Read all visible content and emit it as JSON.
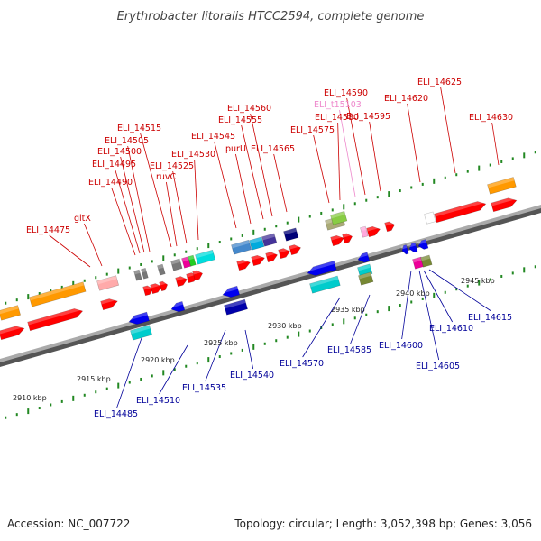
{
  "title": "Erythrobacter litoralis HTCC2594, complete genome",
  "footer": {
    "accession": "Accession: NC_007722",
    "summary": "Topology: circular; Length: 3,052,398 bp; Genes: 3,056"
  },
  "colors": {
    "forward_label": "#cc0000",
    "reverse_label": "#000099",
    "trna_label": "#ee88cc",
    "forward_gene": "#ff0000",
    "reverse_gene": "#0000ee",
    "rna_gene": "#ffaaaa",
    "orange_gene": "#ff9900",
    "cyan_gene": "#00cccc",
    "axis": "#888888",
    "tick": "#228822"
  },
  "scale": {
    "unit": "kbp",
    "ticks": [
      {
        "label": "2910 kbp"
      },
      {
        "label": "2915 kbp"
      },
      {
        "label": "2920 kbp"
      },
      {
        "label": "2925 kbp"
      },
      {
        "label": "2930 kbp"
      },
      {
        "label": "2935 kbp"
      },
      {
        "label": "2940 kbp"
      },
      {
        "label": "2945 kbp"
      }
    ]
  },
  "labels_top": [
    {
      "text": "ELI_14475",
      "type": "forward"
    },
    {
      "text": "gltX",
      "type": "forward"
    },
    {
      "text": "ELI_14490",
      "type": "forward"
    },
    {
      "text": "ELI_14495",
      "type": "forward"
    },
    {
      "text": "ELI_14500",
      "type": "forward"
    },
    {
      "text": "ELI_14505",
      "type": "forward"
    },
    {
      "text": "ELI_14515",
      "type": "forward"
    },
    {
      "text": "ruvC",
      "type": "forward"
    },
    {
      "text": "ELI_14525",
      "type": "forward"
    },
    {
      "text": "ELI_14530",
      "type": "forward"
    },
    {
      "text": "ELI_14545",
      "type": "forward"
    },
    {
      "text": "purU",
      "type": "forward"
    },
    {
      "text": "ELI_14555",
      "type": "forward"
    },
    {
      "text": "ELI_14560",
      "type": "forward"
    },
    {
      "text": "ELI_14565",
      "type": "forward"
    },
    {
      "text": "ELI_14575",
      "type": "forward"
    },
    {
      "text": "ELI_14580",
      "type": "forward"
    },
    {
      "text": "ELI_t15103",
      "type": "trna"
    },
    {
      "text": "ELI_14590",
      "type": "forward"
    },
    {
      "text": "ELI_14595",
      "type": "forward"
    },
    {
      "text": "ELI_14620",
      "type": "forward"
    },
    {
      "text": "ELI_14625",
      "type": "forward"
    },
    {
      "text": "ELI_14630",
      "type": "forward"
    }
  ],
  "labels_bottom": [
    {
      "text": "ELI_14485",
      "type": "reverse"
    },
    {
      "text": "ELI_14510",
      "type": "reverse"
    },
    {
      "text": "ELI_14535",
      "type": "reverse"
    },
    {
      "text": "ELI_14540",
      "type": "reverse"
    },
    {
      "text": "ELI_14570",
      "type": "reverse"
    },
    {
      "text": "ELI_14585",
      "type": "reverse"
    },
    {
      "text": "ELI_14600",
      "type": "reverse"
    },
    {
      "text": "ELI_14605",
      "type": "reverse"
    },
    {
      "text": "ELI_14610",
      "type": "reverse"
    },
    {
      "text": "ELI_14615",
      "type": "reverse"
    }
  ]
}
